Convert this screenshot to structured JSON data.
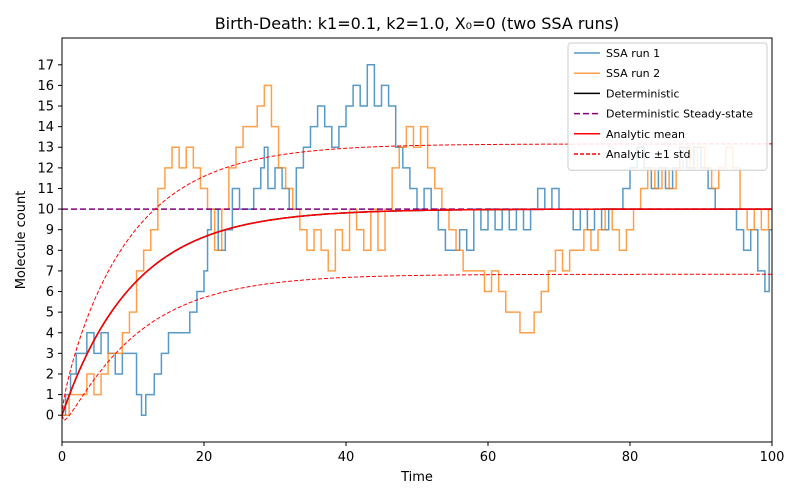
{
  "chart_data": {
    "type": "line",
    "title": "Birth-Death: k1=0.1, k2=1.0, X₀=0 (two SSA runs)",
    "xlabel": "Time",
    "ylabel": "Molecule count",
    "xlim": [
      0,
      100
    ],
    "ylim": [
      -1.3,
      18.3
    ],
    "x_ticks": [
      0,
      20,
      40,
      60,
      80,
      100
    ],
    "y_ticks": [
      0,
      1,
      2,
      3,
      4,
      5,
      6,
      7,
      8,
      9,
      10,
      11,
      12,
      13,
      14,
      15,
      16,
      17
    ],
    "grid": false,
    "legend_position": "top-right",
    "series": [
      {
        "name": "SSA run 1",
        "color": "#1f77b4",
        "style": "step",
        "points": [
          [
            0,
            0
          ],
          [
            0.5,
            1
          ],
          [
            1.2,
            2
          ],
          [
            2,
            3
          ],
          [
            3,
            3
          ],
          [
            3.5,
            4
          ],
          [
            4.5,
            3
          ],
          [
            5.5,
            4
          ],
          [
            6.5,
            3
          ],
          [
            7.5,
            2
          ],
          [
            8.5,
            3
          ],
          [
            9.5,
            3
          ],
          [
            10.5,
            1
          ],
          [
            11.2,
            0
          ],
          [
            11.8,
            1
          ],
          [
            13,
            2
          ],
          [
            14,
            3
          ],
          [
            15,
            4
          ],
          [
            17,
            4
          ],
          [
            18,
            5
          ],
          [
            19,
            6
          ],
          [
            20,
            7
          ],
          [
            20.5,
            9
          ],
          [
            21,
            10
          ],
          [
            22,
            8
          ],
          [
            23,
            9
          ],
          [
            24,
            11
          ],
          [
            25,
            10
          ],
          [
            26,
            10
          ],
          [
            27,
            11
          ],
          [
            28,
            12
          ],
          [
            28.5,
            13
          ],
          [
            29,
            11
          ],
          [
            30,
            12
          ],
          [
            31,
            11
          ],
          [
            32,
            10
          ],
          [
            33,
            12
          ],
          [
            34,
            13
          ],
          [
            35,
            14
          ],
          [
            36,
            15
          ],
          [
            37,
            14
          ],
          [
            38,
            13
          ],
          [
            39,
            14
          ],
          [
            40,
            15
          ],
          [
            41,
            16
          ],
          [
            42,
            15
          ],
          [
            43,
            17
          ],
          [
            44,
            15
          ],
          [
            45,
            16
          ],
          [
            46,
            15
          ],
          [
            47,
            13
          ],
          [
            48,
            12
          ],
          [
            49,
            11
          ],
          [
            50,
            10
          ],
          [
            51,
            11
          ],
          [
            52,
            10
          ],
          [
            53,
            9
          ],
          [
            54,
            8
          ],
          [
            55,
            8
          ],
          [
            56,
            9
          ],
          [
            57,
            8
          ],
          [
            58,
            10
          ],
          [
            59,
            9
          ],
          [
            60,
            10
          ],
          [
            61,
            9
          ],
          [
            62,
            10
          ],
          [
            63,
            9
          ],
          [
            64,
            10
          ],
          [
            65,
            9
          ],
          [
            66,
            10
          ],
          [
            67,
            11
          ],
          [
            68,
            10
          ],
          [
            69,
            11
          ],
          [
            70,
            10
          ],
          [
            71,
            10
          ],
          [
            72,
            9
          ],
          [
            73,
            10
          ],
          [
            74,
            9
          ],
          [
            75,
            10
          ],
          [
            76,
            9
          ],
          [
            77,
            10
          ],
          [
            78,
            10
          ],
          [
            79,
            11
          ],
          [
            80,
            12
          ],
          [
            81,
            13
          ],
          [
            82,
            12
          ],
          [
            83,
            11
          ],
          [
            84,
            12
          ],
          [
            85,
            11
          ],
          [
            86,
            12
          ],
          [
            87,
            13
          ],
          [
            88,
            12
          ],
          [
            89,
            13
          ],
          [
            90,
            12
          ],
          [
            91,
            11
          ],
          [
            92,
            10
          ],
          [
            93,
            10
          ],
          [
            94,
            10
          ],
          [
            95,
            9
          ],
          [
            96,
            8
          ],
          [
            97,
            9
          ],
          [
            98,
            7
          ],
          [
            99,
            6
          ],
          [
            99.6,
            9
          ],
          [
            100,
            9
          ]
        ]
      },
      {
        "name": "SSA run 2",
        "color": "#ff7f0e",
        "style": "step",
        "points": [
          [
            0,
            0
          ],
          [
            1,
            1
          ],
          [
            2,
            1
          ],
          [
            3,
            1
          ],
          [
            3.5,
            2
          ],
          [
            4.5,
            1
          ],
          [
            5.5,
            2
          ],
          [
            6.5,
            3
          ],
          [
            7.5,
            3
          ],
          [
            8.5,
            4
          ],
          [
            9.5,
            5
          ],
          [
            10.5,
            7
          ],
          [
            11.5,
            8
          ],
          [
            12.5,
            9
          ],
          [
            13.5,
            11
          ],
          [
            14.5,
            12
          ],
          [
            15.5,
            13
          ],
          [
            16.5,
            12
          ],
          [
            17.5,
            13
          ],
          [
            18.5,
            12
          ],
          [
            19.5,
            11
          ],
          [
            20.5,
            10
          ],
          [
            21.5,
            8
          ],
          [
            22.5,
            10
          ],
          [
            23.5,
            12
          ],
          [
            24.5,
            13
          ],
          [
            25.5,
            14
          ],
          [
            26.5,
            14
          ],
          [
            27.5,
            15
          ],
          [
            28.5,
            16
          ],
          [
            29.5,
            14
          ],
          [
            30.5,
            12
          ],
          [
            31.5,
            11
          ],
          [
            32.5,
            10
          ],
          [
            33.5,
            9
          ],
          [
            34.5,
            8
          ],
          [
            35.5,
            9
          ],
          [
            36.5,
            8
          ],
          [
            37.5,
            7
          ],
          [
            38.5,
            9
          ],
          [
            39.5,
            8
          ],
          [
            40.5,
            10
          ],
          [
            41.5,
            9
          ],
          [
            42.5,
            8
          ],
          [
            43.5,
            10
          ],
          [
            44.5,
            8
          ],
          [
            45.5,
            10
          ],
          [
            46.5,
            12
          ],
          [
            47.5,
            13
          ],
          [
            48.5,
            14
          ],
          [
            49.5,
            13
          ],
          [
            50.5,
            14
          ],
          [
            51.5,
            12
          ],
          [
            52.5,
            11
          ],
          [
            53.5,
            10
          ],
          [
            54.5,
            9
          ],
          [
            55.5,
            8
          ],
          [
            56.5,
            7
          ],
          [
            57.5,
            7
          ],
          [
            58.5,
            7
          ],
          [
            59.5,
            6
          ],
          [
            60.5,
            7
          ],
          [
            61.5,
            6
          ],
          [
            62.5,
            5
          ],
          [
            63.5,
            5
          ],
          [
            64.5,
            4
          ],
          [
            65.5,
            4
          ],
          [
            66.5,
            5
          ],
          [
            67.5,
            6
          ],
          [
            68.5,
            7
          ],
          [
            69.5,
            8
          ],
          [
            70.5,
            7
          ],
          [
            71.5,
            8
          ],
          [
            72.5,
            8
          ],
          [
            73.5,
            9
          ],
          [
            74.5,
            8
          ],
          [
            75.5,
            9
          ],
          [
            76.5,
            10
          ],
          [
            77.5,
            9
          ],
          [
            78.5,
            8
          ],
          [
            79.5,
            9
          ],
          [
            80.5,
            10
          ],
          [
            81.5,
            11
          ],
          [
            82.5,
            12
          ],
          [
            83.5,
            11
          ],
          [
            84.5,
            12
          ],
          [
            85.5,
            11
          ],
          [
            86.5,
            12
          ],
          [
            87.5,
            13
          ],
          [
            88.5,
            12
          ],
          [
            89.5,
            13
          ],
          [
            90.5,
            12
          ],
          [
            91.5,
            11
          ],
          [
            92.5,
            12
          ],
          [
            93.5,
            13
          ],
          [
            94.5,
            12
          ],
          [
            95.5,
            10
          ],
          [
            96.5,
            9
          ],
          [
            97.5,
            10
          ],
          [
            98.5,
            9
          ],
          [
            99.5,
            10
          ],
          [
            100,
            10
          ]
        ]
      },
      {
        "name": "Deterministic",
        "color": "#000000",
        "style": "line"
      },
      {
        "name": "Deterministic Steady-state",
        "color": "#800080",
        "style": "dashed",
        "value": 10
      },
      {
        "name": "Analytic mean",
        "color": "#ff0000",
        "style": "line"
      },
      {
        "name": "Analytic ±1 std",
        "color": "#ff0000",
        "style": "dashed"
      }
    ]
  }
}
